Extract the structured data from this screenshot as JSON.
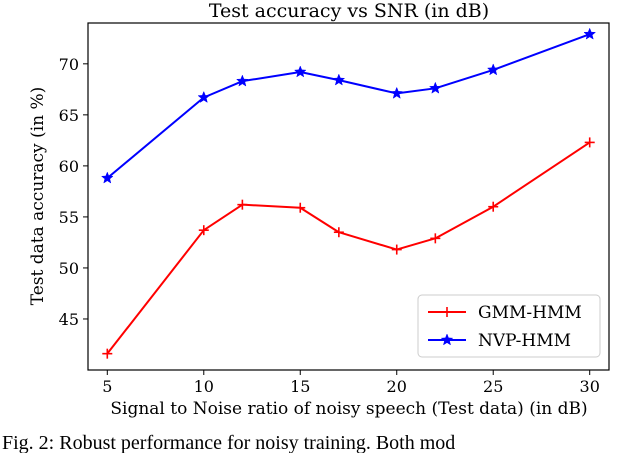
{
  "chart_data": {
    "type": "line",
    "title": "Test accuracy vs SNR (in dB)",
    "xlabel": "Signal to Noise ratio of noisy speech (Test data) (in dB)",
    "ylabel": "Test data accuracy (in %)",
    "x": [
      5,
      10,
      12,
      15,
      17,
      20,
      22,
      25,
      30
    ],
    "xticks": [
      5,
      10,
      15,
      20,
      25,
      30
    ],
    "yticks": [
      45,
      50,
      55,
      60,
      65,
      70
    ],
    "xlim": [
      4,
      31
    ],
    "ylim": [
      40,
      74
    ],
    "grid": false,
    "legend_position": "bottom-right",
    "series": [
      {
        "name": "GMM-HMM",
        "color": "#ff0000",
        "marker": "plus",
        "values": [
          41.6,
          53.7,
          56.2,
          55.9,
          53.5,
          51.8,
          52.9,
          56.0,
          62.3
        ]
      },
      {
        "name": "NVP-HMM",
        "color": "#0000ff",
        "marker": "star",
        "values": [
          58.8,
          66.7,
          68.3,
          69.2,
          68.4,
          67.1,
          67.6,
          69.4,
          72.9
        ]
      }
    ]
  },
  "caption": "Fig. 2: Robust performance for noisy training. Both mod"
}
